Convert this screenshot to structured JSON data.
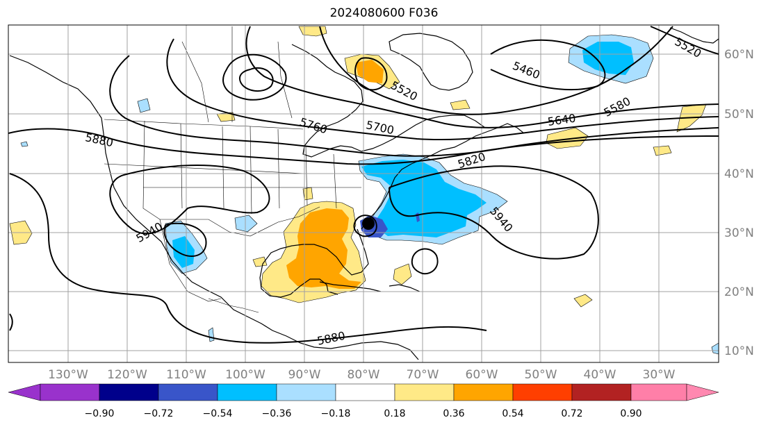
{
  "title": "2024080600 F036",
  "map": {
    "lon_range": [
      -140,
      -23
    ],
    "lat_range": [
      8,
      65
    ],
    "lon_ticks": [
      "130°W",
      "120°W",
      "110°W",
      "100°W",
      "90°W",
      "80°W",
      "70°W",
      "60°W",
      "50°W",
      "40°W",
      "30°W"
    ],
    "lat_ticks": [
      "60°N",
      "50°N",
      "40°N",
      "30°N",
      "20°N",
      "10°N"
    ],
    "contour_labels": [
      "5520",
      "5460",
      "5580",
      "5520",
      "5640",
      "5700",
      "5760",
      "5820",
      "5880",
      "5940",
      "5940",
      "5880"
    ]
  },
  "colorbar": {
    "ticks": [
      "−0.90",
      "−0.72",
      "−0.54",
      "−0.36",
      "−0.18",
      "0.18",
      "0.36",
      "0.54",
      "0.72",
      "0.90"
    ],
    "colors": [
      "#9932cc",
      "#00008b",
      "#3955c9",
      "#00bfff",
      "#aadfff",
      "#ffffff",
      "#ffe987",
      "#ffa500",
      "#ff3f00",
      "#b22222",
      "#ff7fa8",
      "#ff88b0"
    ],
    "extend": "both"
  }
}
